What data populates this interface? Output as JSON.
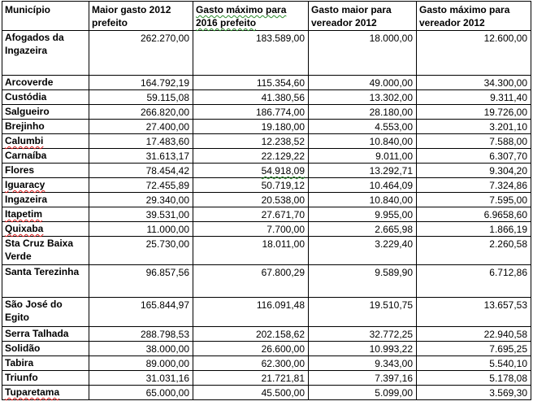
{
  "headers": [
    "Município",
    "Maior gasto 2012 prefeito",
    "Gasto máximo para 2016 prefeito",
    "Gasto maior para vereador 2012",
    "Gasto máximo para vereador 2012"
  ],
  "rows": [
    {
      "municipio": "Afogados da Ingazeira",
      "prefeito_2012": "262.270,00",
      "prefeito_2016": "183.589,00",
      "vereador_2012": "18.000,00",
      "vereador_max": "12.600,00"
    },
    {
      "municipio": "Arcoverde",
      "prefeito_2012": "164.792,19",
      "prefeito_2016": "115.354,60",
      "vereador_2012": "49.000,00",
      "vereador_max": "34.300,00"
    },
    {
      "municipio": "Custódia",
      "prefeito_2012": "59.115,08",
      "prefeito_2016": "41.380,56",
      "vereador_2012": "13.302,00",
      "vereador_max": "9.311,40"
    },
    {
      "municipio": "Salgueiro",
      "prefeito_2012": "266.820,00",
      "prefeito_2016": "186.774,00",
      "vereador_2012": "28.180,00",
      "vereador_max": "19.726,00"
    },
    {
      "municipio": "Brejinho",
      "prefeito_2012": "27.400,00",
      "prefeito_2016": "19.180,00",
      "vereador_2012": "4.553,00",
      "vereador_max": "3.201,10"
    },
    {
      "municipio": "Calumbi",
      "prefeito_2012": "17.483,60",
      "prefeito_2016": "12.238,52",
      "vereador_2012": "10.840,00",
      "vereador_max": "7.588,00"
    },
    {
      "municipio": "Carnaíba",
      "prefeito_2012": "31.613,17",
      "prefeito_2016": "22.129,22",
      "vereador_2012": "9.011,00",
      "vereador_max": "6.307,70"
    },
    {
      "municipio": "Flores",
      "prefeito_2012": "78.454,42",
      "prefeito_2016": "54.918,09",
      "vereador_2012": "13.292,71",
      "vereador_max": "9.304,20"
    },
    {
      "municipio": "Iguaracy",
      "prefeito_2012": "72.455,89",
      "prefeito_2016": "50.719,12",
      "vereador_2012": "10.464,09",
      "vereador_max": "7.324,86"
    },
    {
      "municipio": "Ingazeira",
      "prefeito_2012": "29.340,00",
      "prefeito_2016": "20.538,00",
      "vereador_2012": "10.840,00",
      "vereador_max": "7.595,00"
    },
    {
      "municipio": "Itapetim",
      "prefeito_2012": "39.531,00",
      "prefeito_2016": "27.671,70",
      "vereador_2012": "9.955,00",
      "vereador_max": "6.9658,60"
    },
    {
      "municipio": "Quixaba",
      "prefeito_2012": "11.000,00",
      "prefeito_2016": "7.700,00",
      "vereador_2012": "2.665,98",
      "vereador_max": "1.866,19"
    },
    {
      "municipio": "Sta Cruz Baixa Verde",
      "prefeito_2012": "25.730,00",
      "prefeito_2016": "18.011,00",
      "vereador_2012": "3.229,40",
      "vereador_max": "2.260,58"
    },
    {
      "municipio": "Santa Terezinha",
      "prefeito_2012": "96.857,56",
      "prefeito_2016": "67.800,29",
      "vereador_2012": "9.589,90",
      "vereador_max": "6.712,86"
    },
    {
      "municipio": "São José do Egito",
      "prefeito_2012": "165.844,97",
      "prefeito_2016": "116.091,48",
      "vereador_2012": "19.510,75",
      "vereador_max": "13.657,53"
    },
    {
      "municipio": "Serra Talhada",
      "prefeito_2012": "288.798,53",
      "prefeito_2016": "202.158,62",
      "vereador_2012": "32.772,25",
      "vereador_max": "22.940,58"
    },
    {
      "municipio": "Solidão",
      "prefeito_2012": "38.000,00",
      "prefeito_2016": "26.600,00",
      "vereador_2012": "10.993,22",
      "vereador_max": "7.695,25"
    },
    {
      "municipio": "Tabira",
      "prefeito_2012": "89.000,00",
      "prefeito_2016": "62.300,00",
      "vereador_2012": "9.343,00",
      "vereador_max": "5.540,10"
    },
    {
      "municipio": "Triunfo",
      "prefeito_2012": "31.031,16",
      "prefeito_2016": "21.721,81",
      "vereador_2012": "7.397,16",
      "vereador_max": "5.178,08"
    },
    {
      "municipio": "Tuparetama",
      "prefeito_2012": "65.000,00",
      "prefeito_2016": "45.500,00",
      "vereador_2012": "5.099,00",
      "vereador_max": "3.569,30"
    }
  ]
}
